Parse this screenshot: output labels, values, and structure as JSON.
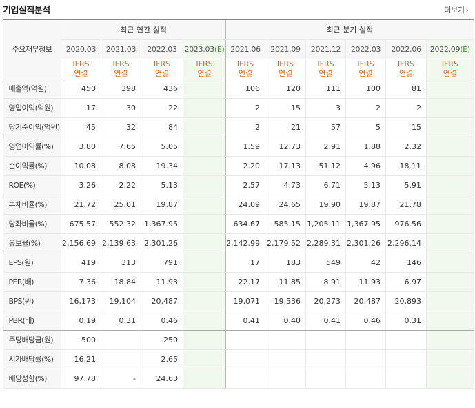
{
  "header": {
    "title": "기업실적분석",
    "more_label": "더보기",
    "more_chevron": "›"
  },
  "table": {
    "key_info_label": "주요재무정보",
    "annual_group_label": "최근 연간 실적",
    "quarter_group_label": "최근 분기 실적",
    "annual_periods": [
      "2020.03",
      "2021.03",
      "2022.03",
      "2023.03"
    ],
    "annual_est_suffix": "(E)",
    "quarter_periods": [
      "2021.06",
      "2021.09",
      "2021.12",
      "2022.03",
      "2022.06",
      "2022.09"
    ],
    "quarter_est_suffix": "(E)",
    "ifrs_line1": "IFRS",
    "ifrs_line2": "연결",
    "rows": [
      {
        "label": "매출액(억원)",
        "annual": [
          "450",
          "398",
          "436",
          ""
        ],
        "quarter": [
          "106",
          "120",
          "111",
          "100",
          "81",
          ""
        ]
      },
      {
        "label": "영업이익(억원)",
        "annual": [
          "17",
          "30",
          "22",
          ""
        ],
        "quarter": [
          "2",
          "15",
          "3",
          "2",
          "2",
          ""
        ]
      },
      {
        "label": "당기순이익(억원)",
        "annual": [
          "45",
          "32",
          "84",
          ""
        ],
        "quarter": [
          "2",
          "21",
          "57",
          "5",
          "15",
          ""
        ]
      },
      {
        "label": "영업이익률(%)",
        "annual": [
          "3.80",
          "7.65",
          "5.05",
          ""
        ],
        "quarter": [
          "1.59",
          "12.73",
          "2.91",
          "1.88",
          "2.32",
          ""
        ]
      },
      {
        "label": "순이익률(%)",
        "annual": [
          "10.08",
          "8.08",
          "19.34",
          ""
        ],
        "quarter": [
          "2.20",
          "17.13",
          "51.12",
          "4.96",
          "18.11",
          ""
        ]
      },
      {
        "label": "ROE(%)",
        "annual": [
          "3.26",
          "2.22",
          "5.13",
          ""
        ],
        "quarter": [
          "2.57",
          "4.73",
          "6.71",
          "5.13",
          "5.91",
          ""
        ]
      },
      {
        "label": "부채비율(%)",
        "annual": [
          "21.72",
          "25.01",
          "19.87",
          ""
        ],
        "quarter": [
          "24.09",
          "24.65",
          "19.90",
          "19.87",
          "21.78",
          ""
        ]
      },
      {
        "label": "당좌비율(%)",
        "annual": [
          "675.57",
          "552.32",
          "1,367.95",
          ""
        ],
        "quarter": [
          "634.67",
          "585.15",
          "1,205.11",
          "1,367.95",
          "976.56",
          ""
        ]
      },
      {
        "label": "유보율(%)",
        "annual": [
          "2,156.69",
          "2,139.63",
          "2,301.26",
          ""
        ],
        "quarter": [
          "2,142.99",
          "2,179.52",
          "2,289.31",
          "2,301.26",
          "2,296.14",
          ""
        ]
      },
      {
        "label": "EPS(원)",
        "annual": [
          "419",
          "313",
          "791",
          ""
        ],
        "quarter": [
          "17",
          "183",
          "549",
          "42",
          "146",
          ""
        ]
      },
      {
        "label": "PER(배)",
        "annual": [
          "7.36",
          "18.84",
          "11.93",
          ""
        ],
        "quarter": [
          "22.17",
          "11.85",
          "8.91",
          "11.93",
          "6.97",
          ""
        ]
      },
      {
        "label": "BPS(원)",
        "annual": [
          "16,173",
          "19,104",
          "20,487",
          ""
        ],
        "quarter": [
          "19,071",
          "19,536",
          "20,273",
          "20,487",
          "20,893",
          ""
        ]
      },
      {
        "label": "PBR(배)",
        "annual": [
          "0.19",
          "0.31",
          "0.46",
          ""
        ],
        "quarter": [
          "0.41",
          "0.40",
          "0.41",
          "0.46",
          "0.31",
          ""
        ]
      },
      {
        "label": "주당배당금(원)",
        "annual": [
          "500",
          "",
          "250",
          ""
        ],
        "quarter": [
          "",
          "",
          "",
          "",
          "",
          ""
        ]
      },
      {
        "label": "시가배당률(%)",
        "annual": [
          "16.21",
          "",
          "2.65",
          ""
        ],
        "quarter": [
          "",
          "",
          "",
          "",
          "",
          ""
        ]
      },
      {
        "label": "배당성향(%)",
        "annual": [
          "97.78",
          "-",
          "24.63",
          ""
        ],
        "quarter": [
          "",
          "",
          "",
          "",
          "",
          ""
        ]
      }
    ]
  },
  "colors": {
    "ifrs": "#e06a1c",
    "estimate_bg": "#f1f8ee",
    "estimate_text": "#3e9a2b",
    "label_bg": "#f7f7f7"
  }
}
